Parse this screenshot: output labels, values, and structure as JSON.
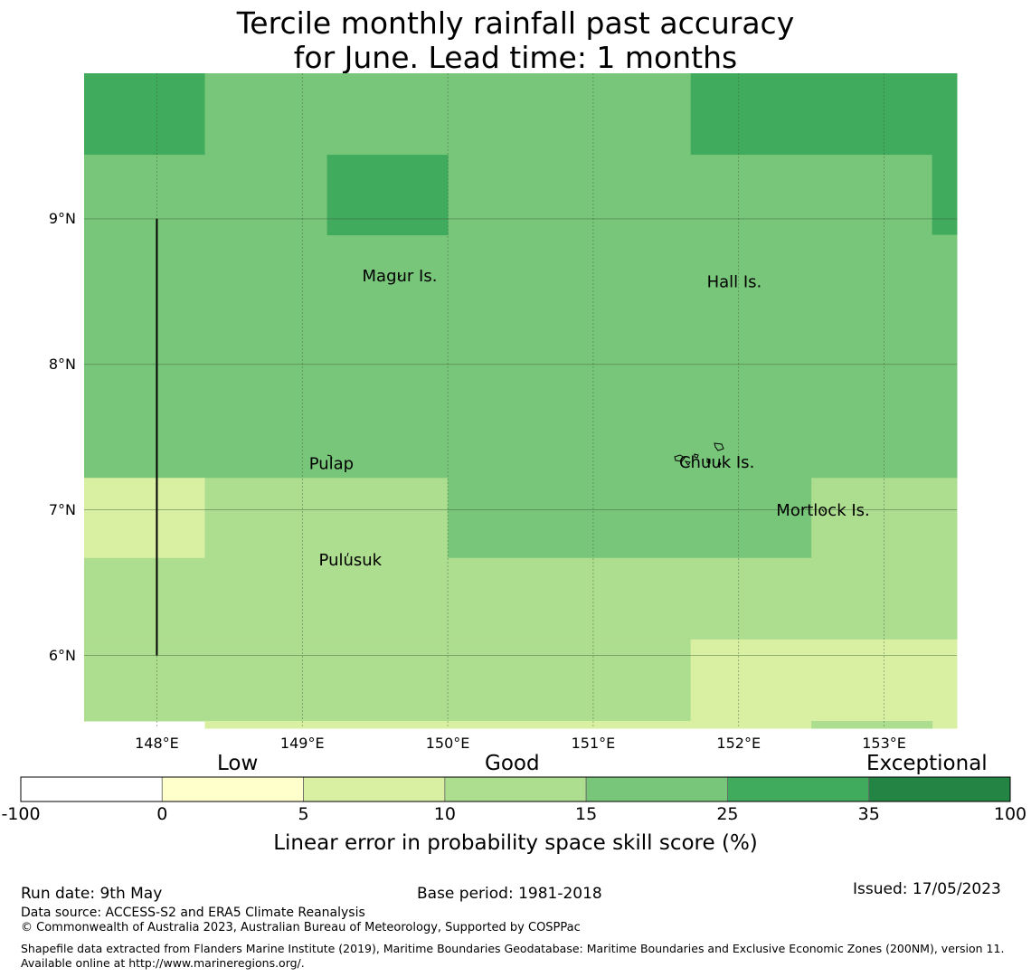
{
  "title": {
    "line1": "Tercile monthly rainfall past accuracy",
    "line2": "for June. Lead time: 1 months"
  },
  "map": {
    "lon_range": [
      147.5,
      153.5
    ],
    "lat_range": [
      5.5,
      10.0
    ],
    "lon_ticks": [
      148,
      149,
      150,
      151,
      152,
      153
    ],
    "lon_tick_labels": [
      "148°E",
      "149°E",
      "150°E",
      "151°E",
      "152°E",
      "153°E"
    ],
    "lat_ticks": [
      9,
      8,
      7,
      6
    ],
    "lat_tick_labels": [
      "9°N",
      "8°N",
      "7°N",
      "6°N"
    ],
    "grid_lines": true,
    "boundary_line": {
      "lon": 148.0,
      "lat_from": 6.0,
      "lat_to": 9.0
    },
    "cells": [
      {
        "lon": [
          147.5,
          148.33
        ],
        "lat": [
          9.44,
          10.0
        ],
        "skill_class": "25-35"
      },
      {
        "lon": [
          148.33,
          151.67
        ],
        "lat": [
          9.44,
          10.0
        ],
        "skill_class": "15-25"
      },
      {
        "lon": [
          151.67,
          153.5
        ],
        "lat": [
          9.44,
          10.0
        ],
        "skill_class": "25-35"
      },
      {
        "lon": [
          147.5,
          153.33
        ],
        "lat": [
          7.22,
          9.44
        ],
        "skill_class": "15-25"
      },
      {
        "lon": [
          149.17,
          150.0
        ],
        "lat": [
          8.89,
          9.44
        ],
        "skill_class": "25-35"
      },
      {
        "lon": [
          153.33,
          153.5
        ],
        "lat": [
          8.89,
          9.44
        ],
        "skill_class": "25-35"
      },
      {
        "lon": [
          153.33,
          153.5
        ],
        "lat": [
          7.22,
          8.89
        ],
        "skill_class": "15-25"
      },
      {
        "lon": [
          147.5,
          148.33
        ],
        "lat": [
          6.67,
          7.22
        ],
        "skill_class": "5-10"
      },
      {
        "lon": [
          148.33,
          150.0
        ],
        "lat": [
          6.67,
          7.22
        ],
        "skill_class": "10-15"
      },
      {
        "lon": [
          150.0,
          152.5
        ],
        "lat": [
          6.67,
          7.22
        ],
        "skill_class": "15-25"
      },
      {
        "lon": [
          152.5,
          153.5
        ],
        "lat": [
          6.67,
          7.22
        ],
        "skill_class": "10-15"
      },
      {
        "lon": [
          147.5,
          153.5
        ],
        "lat": [
          6.11,
          6.67
        ],
        "skill_class": "10-15"
      },
      {
        "lon": [
          147.5,
          151.67
        ],
        "lat": [
          5.55,
          6.11
        ],
        "skill_class": "10-15"
      },
      {
        "lon": [
          151.67,
          153.5
        ],
        "lat": [
          5.5,
          6.11
        ],
        "skill_class": "5-10"
      },
      {
        "lon": [
          148.33,
          151.67
        ],
        "lat": [
          5.5,
          5.55
        ],
        "skill_class": "5-10"
      },
      {
        "lon": [
          152.5,
          153.33
        ],
        "lat": [
          5.5,
          5.55
        ],
        "skill_class": "10-15"
      }
    ],
    "places": [
      {
        "name": "Magur Is.",
        "lon": 149.67,
        "lat": 8.57
      },
      {
        "name": "Hall Is.",
        "lon": 151.97,
        "lat": 8.53
      },
      {
        "name": "Pulap",
        "lon": 149.2,
        "lat": 7.28
      },
      {
        "name": "Chuuk Is.",
        "lon": 151.85,
        "lat": 7.29
      },
      {
        "name": "Mortlock Is.",
        "lon": 152.58,
        "lat": 6.96
      },
      {
        "name": "Pulusuk",
        "lon": 149.33,
        "lat": 6.62
      }
    ]
  },
  "colorbar": {
    "boundaries": [
      -100,
      0,
      5,
      10,
      15,
      25,
      35,
      100
    ],
    "tick_labels": [
      "-100",
      "0",
      "5",
      "10",
      "15",
      "25",
      "35",
      "100"
    ],
    "colors": [
      "#ffffff",
      "#ffffcc",
      "#d9f0a3",
      "#addd8e",
      "#78c679",
      "#41ab5d",
      "#238443"
    ],
    "categories": [
      "Low",
      "Good",
      "Exceptional"
    ],
    "label": "Linear error in probability space skill score (%)"
  },
  "skill_colors": {
    "5-10": "#d9f0a3",
    "10-15": "#addd8e",
    "15-25": "#78c679",
    "25-35": "#41ab5d"
  },
  "footer": {
    "run_date": "Run date: 9th May",
    "base_period": "Base period: 1981-2018",
    "issued": "Issued: 17/05/2023",
    "data_source": "Data source: ACCESS-S2 and ERA5 Climate Reanalysis",
    "copyright": "© Commonwealth of Australia 2023, Australian Bureau of Meteorology, Supported by COSPPac",
    "shapefile_note": "Shapefile data extracted from Flanders Marine Institute (2019), Maritime Boundaries Geodatabase: Maritime Boundaries and Exclusive Economic Zones (200NM), version 11. Available online at http://www.marineregions.org/."
  }
}
